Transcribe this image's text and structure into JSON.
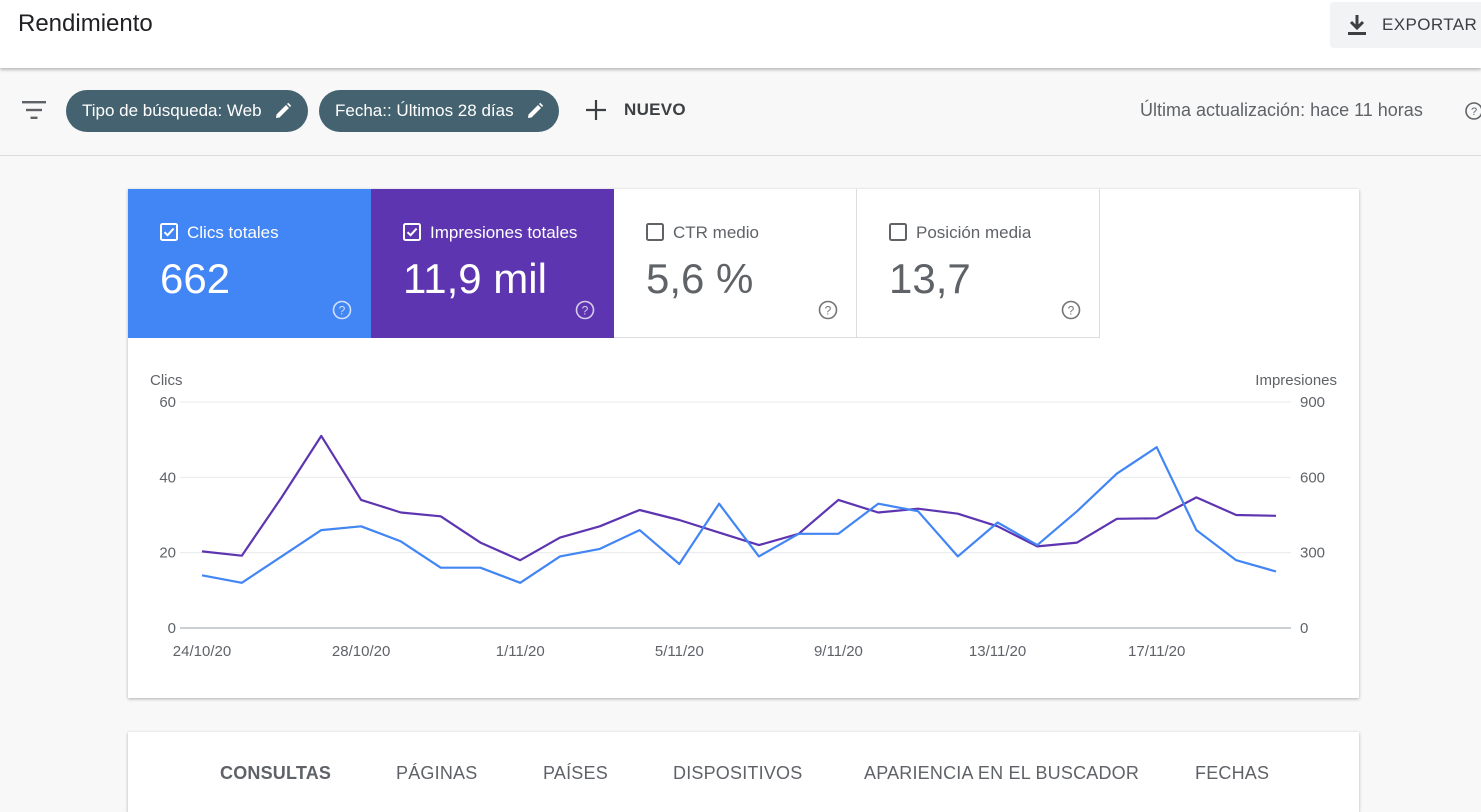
{
  "header": {
    "title": "Rendimiento",
    "export_label": "EXPORTAR"
  },
  "filters": {
    "chips": [
      {
        "label": "Tipo de búsqueda: Web"
      },
      {
        "label": "Fecha:: Últimos 28 días"
      }
    ],
    "new_label": "NUEVO",
    "last_update": "Última actualización: hace 11 horas"
  },
  "metrics": [
    {
      "label": "Clics totales",
      "value": "662",
      "checked": true,
      "color": "#4285f4"
    },
    {
      "label": "Impresiones totales",
      "value": "11,9 mil",
      "checked": true,
      "color": "#5e35b1"
    },
    {
      "label": "CTR medio",
      "value": "5,6 %",
      "checked": false
    },
    {
      "label": "Posición media",
      "value": "13,7",
      "checked": false
    }
  ],
  "chart_data": {
    "type": "line",
    "x": [
      "24/10/20",
      "25/10/20",
      "26/10/20",
      "27/10/20",
      "28/10/20",
      "29/10/20",
      "30/10/20",
      "31/10/20",
      "1/11/20",
      "2/11/20",
      "3/11/20",
      "4/11/20",
      "5/11/20",
      "6/11/20",
      "7/11/20",
      "8/11/20",
      "9/11/20",
      "10/11/20",
      "11/11/20",
      "12/11/20",
      "13/11/20",
      "14/11/20",
      "15/11/20",
      "16/11/20",
      "17/11/20",
      "18/11/20",
      "19/11/20",
      "20/11/20"
    ],
    "x_tick_labels": [
      "24/10/20",
      "28/10/20",
      "1/11/20",
      "5/11/20",
      "9/11/20",
      "13/11/20",
      "17/11/20"
    ],
    "y_left": {
      "label": "Clics",
      "ticks": [
        "0",
        "20",
        "40",
        "60"
      ],
      "range": [
        0,
        60
      ]
    },
    "y_right": {
      "label": "Impresiones",
      "ticks": [
        "0",
        "300",
        "600",
        "900"
      ],
      "range": [
        0,
        900
      ]
    },
    "series": [
      {
        "axis": "left",
        "color": "#4285f4",
        "values": [
          14,
          12,
          19,
          26,
          27,
          23,
          16,
          16,
          12,
          19,
          21,
          26,
          17,
          33,
          19,
          25,
          25,
          33,
          31,
          19,
          28,
          22,
          31,
          41,
          48,
          26,
          18,
          15
        ]
      },
      {
        "axis": "right",
        "color": "#5e35b1",
        "values": [
          305,
          288,
          520,
          765,
          510,
          460,
          445,
          340,
          270,
          360,
          405,
          470,
          430,
          380,
          330,
          375,
          510,
          460,
          475,
          455,
          405,
          325,
          340,
          435,
          437,
          520,
          450,
          447
        ]
      }
    ]
  },
  "tabs": [
    {
      "label": "CONSULTAS",
      "active": true
    },
    {
      "label": "PÁGINAS"
    },
    {
      "label": "PAÍSES"
    },
    {
      "label": "DISPOSITIVOS"
    },
    {
      "label": "APARIENCIA EN EL BUSCADOR"
    },
    {
      "label": "FECHAS"
    }
  ]
}
